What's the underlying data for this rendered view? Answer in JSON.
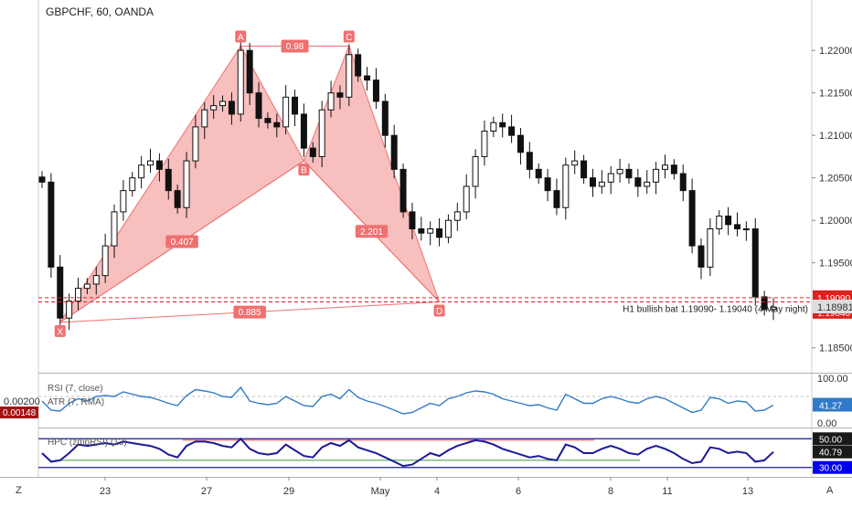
{
  "header": {
    "title": "GBPCHF, 60, OANDA"
  },
  "chart_data": {
    "type": "candlestick",
    "price_axis": {
      "ticks": [
        "1.22000",
        "1.21500",
        "1.21000",
        "1.20500",
        "1.20000",
        "1.19500",
        "1.18500"
      ],
      "ylim": [
        1.1825,
        1.2255
      ]
    },
    "time_axis": {
      "ticks": [
        "23",
        "27",
        "29",
        "May",
        "4",
        "6",
        "8",
        "11",
        "13"
      ]
    },
    "price_closes": [
      1.2045,
      1.1945,
      1.1885,
      1.1905,
      1.192,
      1.1925,
      1.1935,
      1.197,
      1.201,
      1.2035,
      1.205,
      1.2065,
      1.207,
      1.206,
      1.2035,
      1.2015,
      1.207,
      1.211,
      1.213,
      1.2135,
      1.214,
      1.2125,
      1.22,
      1.215,
      1.212,
      1.2115,
      1.211,
      1.2145,
      1.2125,
      1.2085,
      1.2075,
      1.213,
      1.215,
      1.2145,
      1.2195,
      1.217,
      1.2165,
      1.214,
      1.21,
      1.206,
      1.201,
      1.199,
      1.1985,
      1.199,
      1.198,
      1.2,
      1.201,
      1.204,
      1.2075,
      1.2105,
      1.2115,
      1.211,
      1.21,
      1.208,
      1.206,
      1.205,
      1.2035,
      1.2015,
      1.2065,
      1.207,
      1.205,
      1.204,
      1.2045,
      1.2055,
      1.206,
      1.205,
      1.204,
      1.2045,
      1.206,
      1.2065,
      1.2055,
      1.2035,
      1.197,
      1.1945,
      1.199,
      1.2005,
      1.1995,
      1.199,
      1.199,
      1.191,
      1.1895,
      1.1898
    ],
    "pattern": {
      "name": "H1 bullish bat",
      "points": [
        {
          "label": "X",
          "date_index": 2,
          "price": 1.188
        },
        {
          "label": "A",
          "date_index": 22,
          "price": 1.2205
        },
        {
          "label": "B",
          "date_index": 29,
          "price": 1.207
        },
        {
          "label": "C",
          "date_index": 34,
          "price": 1.2205
        },
        {
          "label": "D",
          "date_index": 44,
          "price": 1.1904
        }
      ],
      "ratios": [
        {
          "label": "0.98",
          "between": [
            "A",
            "C"
          ]
        },
        {
          "label": "0.407",
          "between": [
            "X",
            "B"
          ]
        },
        {
          "label": "2.201",
          "between": [
            "B",
            "D"
          ]
        },
        {
          "label": "0.885",
          "between": [
            "X",
            "D"
          ]
        }
      ],
      "color": "#f07070"
    },
    "zone": {
      "upper_price": 1.1909,
      "lower_price": 1.1904,
      "upper_label": "1.19090",
      "lower_label": "1.19040",
      "note": "H1 bullish bat 1.19090- 1.19040 (4 May night)"
    },
    "current_price": {
      "value": 1.18981,
      "label": "1.18981"
    },
    "rsi": {
      "label": "RSI (7, close)",
      "ticks": [
        "100.00",
        "0.00"
      ],
      "value_label": "41.27",
      "ylim": [
        0,
        100
      ],
      "color": "#2f7bc9",
      "values": [
        50,
        30,
        28,
        45,
        55,
        50,
        60,
        62,
        60,
        70,
        65,
        60,
        58,
        52,
        45,
        40,
        62,
        75,
        72,
        68,
        60,
        58,
        80,
        50,
        45,
        42,
        45,
        60,
        50,
        40,
        38,
        60,
        65,
        55,
        75,
        58,
        50,
        45,
        38,
        30,
        22,
        25,
        35,
        45,
        40,
        55,
        60,
        68,
        72,
        70,
        65,
        55,
        50,
        45,
        40,
        42,
        35,
        30,
        65,
        55,
        45,
        45,
        55,
        60,
        55,
        48,
        45,
        55,
        60,
        55,
        45,
        35,
        25,
        30,
        58,
        55,
        45,
        50,
        48,
        28,
        30,
        41
      ]
    },
    "atr": {
      "label": "ATR (7, RMA)",
      "tick": "0.00200",
      "value_label": "0.00148"
    },
    "hpc": {
      "label": "HPC (zmpRSI) (13)",
      "ticks": [
        "50.00",
        "40.79",
        "30.00"
      ],
      "color": "#1a1a99",
      "values": [
        40,
        34,
        35,
        40,
        46,
        45,
        46,
        47,
        46,
        48,
        47,
        46,
        45,
        43,
        39,
        37,
        45,
        48,
        48,
        47,
        45,
        44,
        50,
        43,
        40,
        39,
        40,
        46,
        42,
        38,
        37,
        44,
        47,
        45,
        49,
        44,
        42,
        40,
        37,
        34,
        31,
        32,
        36,
        40,
        38,
        42,
        45,
        47,
        49,
        48,
        46,
        43,
        41,
        39,
        37,
        38,
        36,
        35,
        46,
        44,
        40,
        40,
        43,
        45,
        43,
        40,
        39,
        43,
        45,
        43,
        40,
        36,
        33,
        34,
        44,
        43,
        40,
        41,
        40,
        34,
        35,
        40.8
      ]
    }
  },
  "toolbar": {
    "timezone_button": "Z",
    "auto_scale_button": "A"
  }
}
